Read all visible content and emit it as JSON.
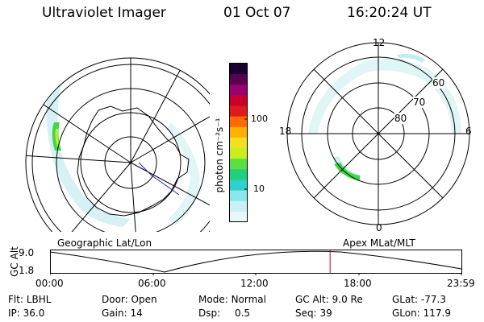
{
  "header": {
    "instrument": "Ultraviolet Imager",
    "date": "01 Oct 07",
    "time": "16:20:24 UT"
  },
  "colorbar": {
    "ticks": [
      "100",
      "10"
    ],
    "unit_label": "photon cm⁻²s⁻¹",
    "colors": [
      "#1a0030",
      "#5a0050",
      "#9a0070",
      "#c8002a",
      "#e01a1a",
      "#ff6a00",
      "#ffb000",
      "#f0e020",
      "#c8ee20",
      "#5ae040",
      "#20d080",
      "#30d0d0",
      "#8ae8ec",
      "#c8f2f4",
      "#e6f8f8"
    ]
  },
  "panels": {
    "geographic": {
      "caption": "Geographic Lat/Lon",
      "projection": "geographic",
      "oval_color": "#bfeef0",
      "bright_color": "#40d840"
    },
    "magnetic": {
      "caption": "Apex MLat/MLT",
      "mlt_labels": {
        "top": "12",
        "left": "18",
        "right": "6",
        "bottom": "0"
      },
      "lat_labels": [
        "60",
        "70",
        "80"
      ],
      "oval_color": "#bfeef0",
      "bright_color": "#40d840"
    }
  },
  "altitude_plot": {
    "ylabel": "GC Alt",
    "yticks": [
      "9.0",
      "1.8"
    ],
    "xticks": [
      "00:00",
      "06:00",
      "12:00",
      "18:00",
      "23:59"
    ],
    "current_time_marker_color": "#cc0000",
    "current_time_hours": 16.34
  },
  "status": {
    "row1": [
      {
        "key": "Flt:",
        "value": "LBHL"
      },
      {
        "key": "Door:",
        "value": "Open"
      },
      {
        "key": "Mode:",
        "value": "Normal"
      },
      {
        "key": "GC Alt:",
        "value": "9.0 Re"
      },
      {
        "key": "GLat:",
        "value": "-77.3"
      }
    ],
    "row2": [
      {
        "key": "IP:",
        "value": "36.0"
      },
      {
        "key": "Gain:",
        "value": "14"
      },
      {
        "key": "Dsp:",
        "value": "0.5"
      },
      {
        "key": "Seq:",
        "value": "39"
      },
      {
        "key": "GLon:",
        "value": "117.9"
      }
    ]
  }
}
